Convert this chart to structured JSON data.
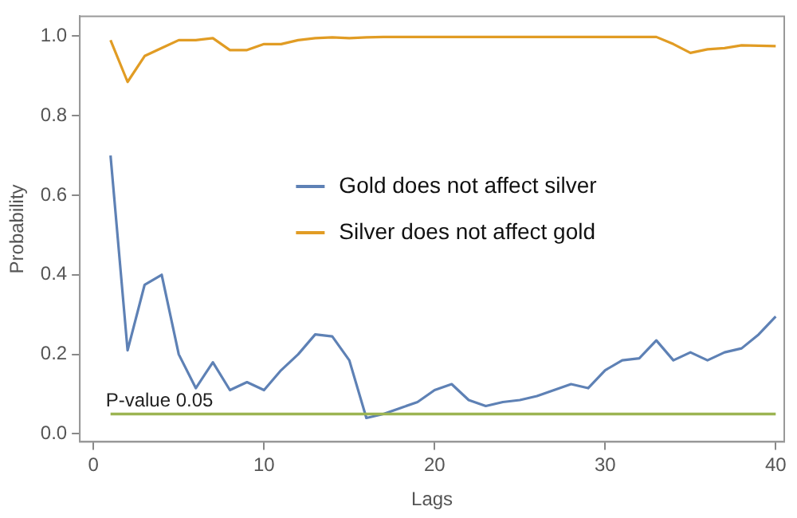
{
  "chart_data": {
    "type": "line",
    "xlabel": "Lags",
    "ylabel": "Probability",
    "x": [
      1,
      2,
      3,
      4,
      5,
      6,
      7,
      8,
      9,
      10,
      11,
      12,
      13,
      14,
      15,
      16,
      17,
      18,
      19,
      20,
      21,
      22,
      23,
      24,
      25,
      26,
      27,
      28,
      29,
      30,
      31,
      32,
      33,
      34,
      35,
      36,
      37,
      38,
      39,
      40
    ],
    "series": [
      {
        "name": "Gold does not affect silver",
        "color": "#5e81b5",
        "values": [
          0.7,
          0.21,
          0.375,
          0.4,
          0.2,
          0.115,
          0.18,
          0.11,
          0.13,
          0.11,
          0.16,
          0.2,
          0.25,
          0.245,
          0.185,
          0.04,
          0.05,
          0.065,
          0.08,
          0.11,
          0.125,
          0.085,
          0.07,
          0.08,
          0.085,
          0.095,
          0.11,
          0.125,
          0.115,
          0.16,
          0.185,
          0.19,
          0.235,
          0.185,
          0.205,
          0.185,
          0.205,
          0.215,
          0.25,
          0.295
        ]
      },
      {
        "name": "Silver does not affect gold",
        "color": "#e19c24",
        "values": [
          0.99,
          0.885,
          0.95,
          0.97,
          0.99,
          0.99,
          0.995,
          0.965,
          0.965,
          0.98,
          0.98,
          0.99,
          0.995,
          0.997,
          0.995,
          0.997,
          0.998,
          0.998,
          0.998,
          0.998,
          0.998,
          0.998,
          0.998,
          0.998,
          0.998,
          0.998,
          0.998,
          0.998,
          0.998,
          0.998,
          0.998,
          0.998,
          0.998,
          0.98,
          0.958,
          0.967,
          0.97,
          0.977,
          0.976,
          0.975
        ]
      }
    ],
    "ref_lines": [
      {
        "axis": "y",
        "value": 0.05,
        "label": "P-value 0.05",
        "color": "#9cb452"
      }
    ],
    "xlim": [
      -0.8,
      40.5
    ],
    "xticks": [
      0,
      10,
      20,
      30,
      40
    ],
    "ylim": [
      -0.02,
      1.05
    ],
    "yticks": [
      {
        "value": 0,
        "label": "0.0"
      },
      {
        "value": 0.2,
        "label": "0.2"
      },
      {
        "value": 0.4,
        "label": "0.4"
      },
      {
        "value": 0.6,
        "label": "0.6"
      },
      {
        "value": 0.8,
        "label": "0.8"
      },
      {
        "value": 1,
        "label": "1.0"
      }
    ],
    "grid": false,
    "legend": "center",
    "marker": "none",
    "line_style": "solid"
  }
}
